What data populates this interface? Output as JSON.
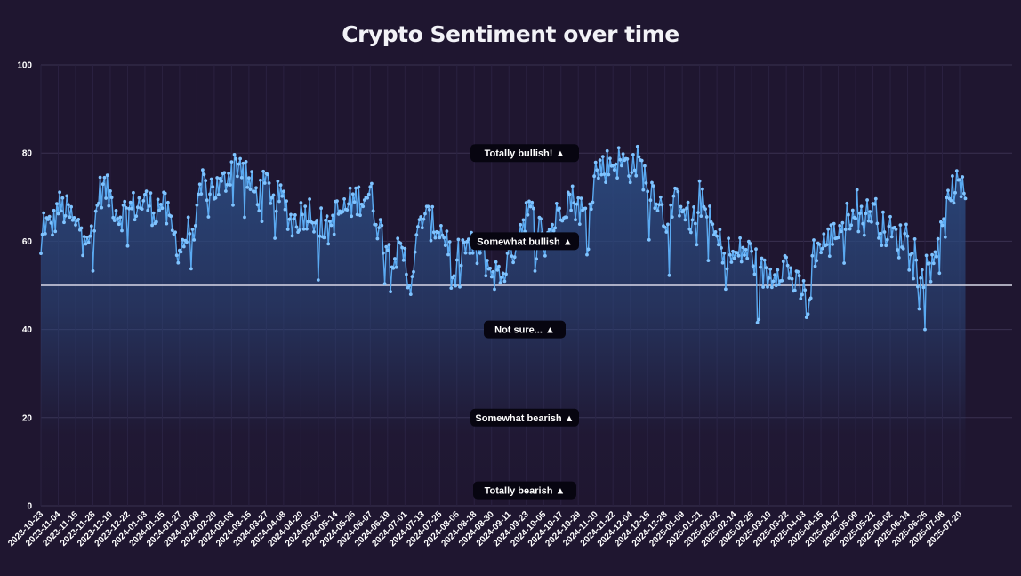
{
  "chart_data": {
    "type": "area",
    "title": "Crypto Sentiment over time",
    "xlabel": "",
    "ylabel": "",
    "ylim": [
      0,
      100
    ],
    "yticks": [
      0,
      20,
      40,
      60,
      80,
      100
    ],
    "reference_line": 50,
    "grid": true,
    "x_tick_labels": [
      "2023-10-23",
      "2023-11-04",
      "2023-11-16",
      "2023-11-28",
      "2023-12-10",
      "2023-12-22",
      "2024-01-03",
      "2024-01-15",
      "2024-01-27",
      "2024-02-08",
      "2024-02-20",
      "2024-03-03",
      "2024-03-15",
      "2024-03-27",
      "2024-04-08",
      "2024-04-20",
      "2024-05-02",
      "2024-05-14",
      "2024-05-26",
      "2024-06-07",
      "2024-06-19",
      "2024-07-01",
      "2024-07-13",
      "2024-07-25",
      "2024-08-06",
      "2024-08-18",
      "2024-08-30",
      "2024-09-11",
      "2024-09-23",
      "2024-10-05",
      "2024-10-17",
      "2024-10-29",
      "2024-11-10",
      "2024-11-22",
      "2024-12-04",
      "2024-12-16",
      "2024-12-28",
      "2025-01-09",
      "2025-01-21",
      "2025-02-02",
      "2025-02-14",
      "2025-02-26",
      "2025-03-10",
      "2025-03-22",
      "2025-04-03",
      "2025-04-15",
      "2025-04-27",
      "2025-05-09",
      "2025-05-21",
      "2025-06-02",
      "2025-06-14",
      "2025-06-26",
      "2025-07-08",
      "2025-07-20"
    ],
    "series": [
      {
        "color": "#5aaaf2",
        "fill_color": "#2b4a80",
        "anchors": [
          [
            "2023-10-23",
            56
          ],
          [
            "2023-10-25",
            65
          ],
          [
            "2023-10-28",
            63
          ],
          [
            "2023-11-01",
            64
          ],
          [
            "2023-11-04",
            68
          ],
          [
            "2023-11-08",
            67
          ],
          [
            "2023-11-12",
            66
          ],
          [
            "2023-11-16",
            63
          ],
          [
            "2023-11-22",
            64
          ],
          [
            "2023-11-28",
            60
          ],
          [
            "2023-12-02",
            71
          ],
          [
            "2023-12-06",
            72
          ],
          [
            "2023-12-10",
            70
          ],
          [
            "2023-12-16",
            66
          ],
          [
            "2023-12-22",
            67
          ],
          [
            "2024-01-03",
            69
          ],
          [
            "2024-01-10",
            67
          ],
          [
            "2024-01-15",
            69
          ],
          [
            "2024-01-20",
            64
          ],
          [
            "2024-01-27",
            58
          ],
          [
            "2024-02-02",
            62
          ],
          [
            "2024-02-08",
            65
          ],
          [
            "2024-02-12",
            73
          ],
          [
            "2024-02-20",
            72
          ],
          [
            "2024-02-25",
            72
          ],
          [
            "2024-03-03",
            77
          ],
          [
            "2024-03-08",
            78
          ],
          [
            "2024-03-12",
            77
          ],
          [
            "2024-03-15",
            73
          ],
          [
            "2024-03-21",
            70
          ],
          [
            "2024-03-27",
            73
          ],
          [
            "2024-04-02",
            70
          ],
          [
            "2024-04-08",
            69
          ],
          [
            "2024-04-14",
            64
          ],
          [
            "2024-04-20",
            66
          ],
          [
            "2024-04-26",
            67
          ],
          [
            "2024-05-02",
            65
          ],
          [
            "2024-05-08",
            62
          ],
          [
            "2024-05-14",
            66
          ],
          [
            "2024-05-20",
            67
          ],
          [
            "2024-05-26",
            69
          ],
          [
            "2024-06-01",
            70
          ],
          [
            "2024-06-07",
            71
          ],
          [
            "2024-06-13",
            63
          ],
          [
            "2024-06-19",
            59
          ],
          [
            "2024-06-25",
            57
          ],
          [
            "2024-07-01",
            56
          ],
          [
            "2024-07-04",
            50
          ],
          [
            "2024-07-08",
            57
          ],
          [
            "2024-07-13",
            66
          ],
          [
            "2024-07-19",
            64
          ],
          [
            "2024-07-25",
            63
          ],
          [
            "2024-07-31",
            60
          ],
          [
            "2024-08-04",
            49
          ],
          [
            "2024-08-06",
            56
          ],
          [
            "2024-08-12",
            59
          ],
          [
            "2024-08-18",
            58
          ],
          [
            "2024-08-24",
            57
          ],
          [
            "2024-08-30",
            53
          ],
          [
            "2024-09-05",
            52
          ],
          [
            "2024-09-11",
            56
          ],
          [
            "2024-09-17",
            61
          ],
          [
            "2024-09-23",
            67
          ],
          [
            "2024-09-29",
            65
          ],
          [
            "2024-10-05",
            61
          ],
          [
            "2024-10-11",
            63
          ],
          [
            "2024-10-17",
            68
          ],
          [
            "2024-10-23",
            70
          ],
          [
            "2024-10-29",
            68
          ],
          [
            "2024-11-04",
            65
          ],
          [
            "2024-11-10",
            76
          ],
          [
            "2024-11-16",
            77
          ],
          [
            "2024-11-22",
            78
          ],
          [
            "2024-11-28",
            78
          ],
          [
            "2024-12-04",
            77
          ],
          [
            "2024-12-10",
            78
          ],
          [
            "2024-12-16",
            73
          ],
          [
            "2024-12-22",
            71
          ],
          [
            "2024-12-28",
            65
          ],
          [
            "2025-01-03",
            68
          ],
          [
            "2025-01-09",
            70
          ],
          [
            "2025-01-15",
            63
          ],
          [
            "2025-01-21",
            70
          ],
          [
            "2025-01-27",
            65
          ],
          [
            "2025-02-02",
            60
          ],
          [
            "2025-02-08",
            58
          ],
          [
            "2025-02-14",
            56
          ],
          [
            "2025-02-20",
            58
          ],
          [
            "2025-02-26",
            57
          ],
          [
            "2025-03-04",
            53
          ],
          [
            "2025-03-10",
            52
          ],
          [
            "2025-03-16",
            54
          ],
          [
            "2025-03-22",
            55
          ],
          [
            "2025-03-28",
            50
          ],
          [
            "2025-04-03",
            48
          ],
          [
            "2025-04-06",
            44
          ],
          [
            "2025-04-09",
            57
          ],
          [
            "2025-04-15",
            59
          ],
          [
            "2025-04-21",
            60
          ],
          [
            "2025-04-27",
            63
          ],
          [
            "2025-05-03",
            65
          ],
          [
            "2025-05-09",
            69
          ],
          [
            "2025-05-15",
            65
          ],
          [
            "2025-05-21",
            68
          ],
          [
            "2025-05-27",
            63
          ],
          [
            "2025-06-02",
            62
          ],
          [
            "2025-06-08",
            60
          ],
          [
            "2025-06-14",
            62
          ],
          [
            "2025-06-20",
            58
          ],
          [
            "2025-06-26",
            53
          ],
          [
            "2025-07-02",
            58
          ],
          [
            "2025-07-08",
            61
          ],
          [
            "2025-07-14",
            72
          ],
          [
            "2025-07-20",
            72
          ],
          [
            "2025-07-24",
            70
          ]
        ]
      }
    ],
    "annotations": [
      {
        "label": "Totally bullish! ▲",
        "y": 80
      },
      {
        "label": "Somewhat bullish ▲",
        "y": 60
      },
      {
        "label": "Not sure... ▲",
        "y": 40
      },
      {
        "label": "Somewhat bearish ▲",
        "y": 20
      },
      {
        "label": "Totally bearish ▲",
        "y": 3.5
      }
    ]
  }
}
